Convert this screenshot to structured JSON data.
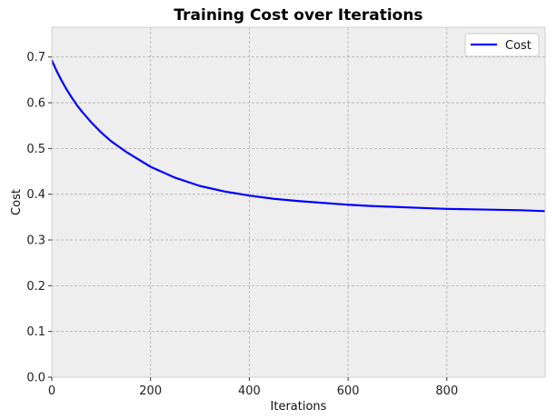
{
  "chart_data": {
    "type": "line",
    "title": "Training Cost over Iterations",
    "xlabel": "Iterations",
    "ylabel": "Cost",
    "xlim": [
      0,
      999
    ],
    "ylim": [
      0,
      0.765
    ],
    "xticks": [
      0,
      200,
      400,
      600,
      800
    ],
    "yticks": [
      0.0,
      0.1,
      0.2,
      0.3,
      0.4,
      0.5,
      0.6,
      0.7
    ],
    "xtick_labels": [
      "0",
      "200",
      "400",
      "600",
      "800"
    ],
    "ytick_labels": [
      "0.0",
      "0.1",
      "0.2",
      "0.3",
      "0.4",
      "0.5",
      "0.6",
      "0.7"
    ],
    "grid": true,
    "legend_position": "top-right",
    "series": [
      {
        "name": "Cost",
        "color": "#0000ff",
        "x": [
          0,
          10,
          20,
          30,
          40,
          50,
          60,
          80,
          100,
          120,
          150,
          200,
          250,
          300,
          350,
          400,
          450,
          500,
          550,
          600,
          650,
          700,
          750,
          800,
          850,
          900,
          950,
          999
        ],
        "y": [
          0.693,
          0.669,
          0.648,
          0.629,
          0.612,
          0.596,
          0.582,
          0.557,
          0.535,
          0.516,
          0.493,
          0.46,
          0.436,
          0.418,
          0.406,
          0.397,
          0.39,
          0.385,
          0.381,
          0.377,
          0.374,
          0.372,
          0.37,
          0.368,
          0.367,
          0.366,
          0.365,
          0.363
        ]
      }
    ]
  },
  "colors": {
    "plot_background": "#eeeeee",
    "grid": "#b0b0b0",
    "line": "#0000ff"
  }
}
